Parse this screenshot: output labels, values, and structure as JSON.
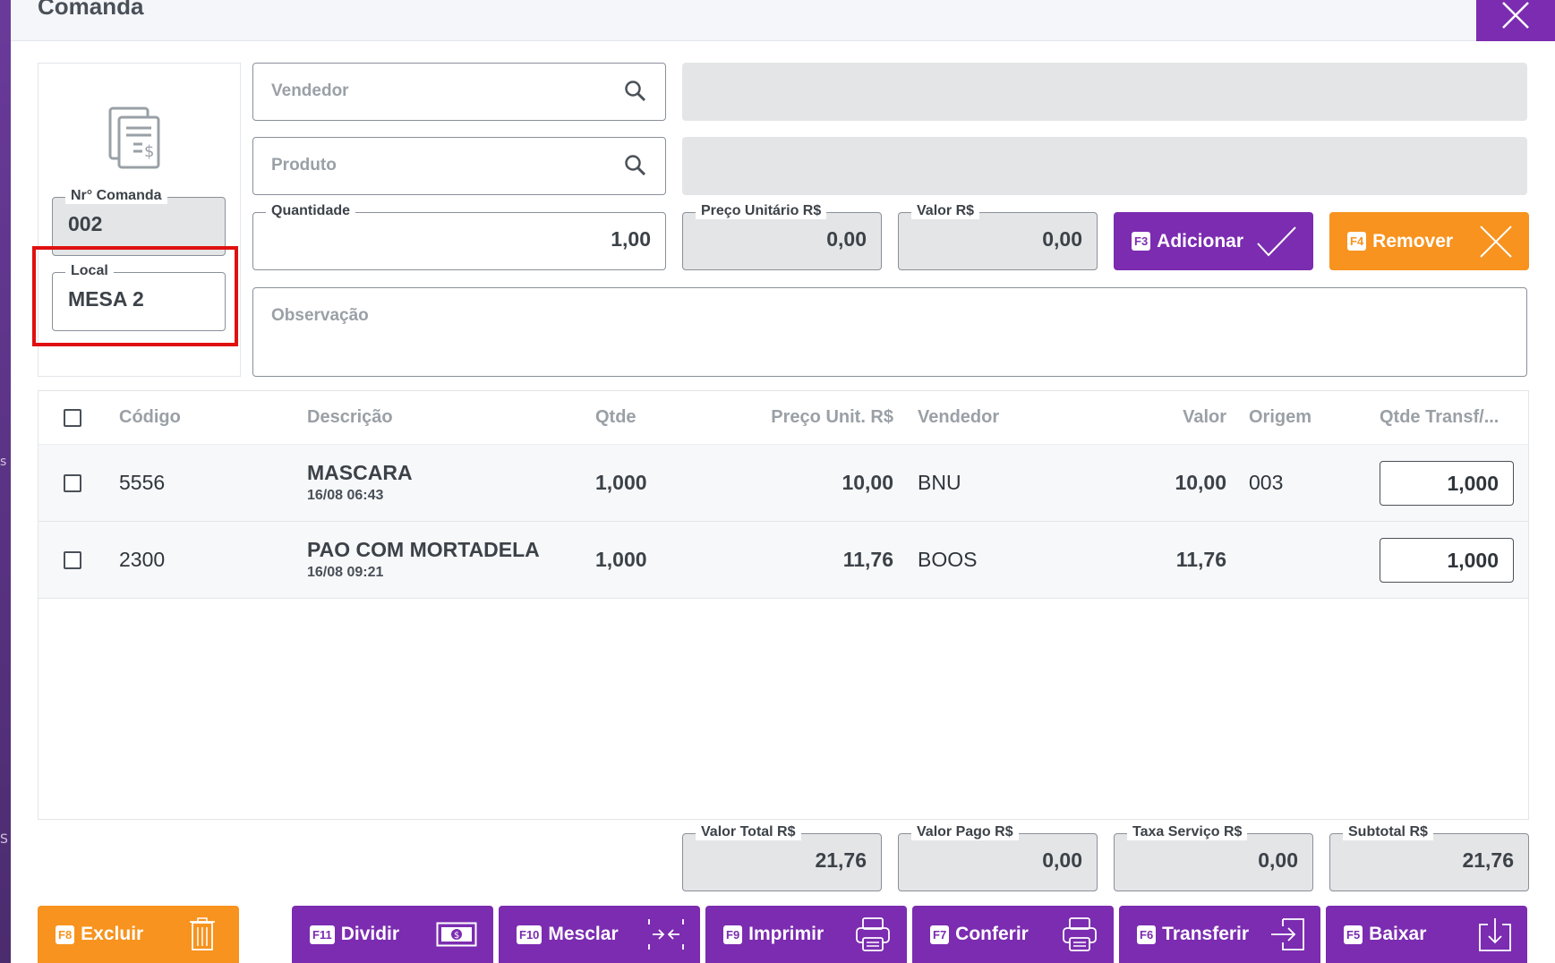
{
  "modal": {
    "title": "Comanda"
  },
  "left_panel": {
    "nr_comanda": {
      "label": "Nr° Comanda",
      "value": "002"
    },
    "local": {
      "label": "Local",
      "value": "MESA 2"
    }
  },
  "form": {
    "vendedor": {
      "placeholder": "Vendedor"
    },
    "produto": {
      "placeholder": "Produto"
    },
    "quantidade": {
      "label": "Quantidade",
      "value": "1,00"
    },
    "preco_unitario": {
      "label": "Preço Unitário R$",
      "value": "0,00"
    },
    "valor": {
      "label": "Valor R$",
      "value": "0,00"
    },
    "observacao": {
      "placeholder": "Observação"
    }
  },
  "actions": {
    "adicionar": {
      "key": "F3",
      "label": "Adicionar"
    },
    "remover": {
      "key": "F4",
      "label": "Remover"
    }
  },
  "table": {
    "columns": [
      "Código",
      "Descrição",
      "Qtde",
      "Preço Unit. R$",
      "Vendedor",
      "Valor",
      "Origem",
      "Qtde Transf/..."
    ],
    "rows": [
      {
        "codigo": "5556",
        "descricao": "MASCARA",
        "data": "16/08 06:43",
        "qtde": "1,000",
        "preco": "10,00",
        "vendedor": "BNU",
        "valor": "10,00",
        "origem": "003",
        "qtde_transf": "1,000"
      },
      {
        "codigo": "2300",
        "descricao": "PAO COM MORTADELA",
        "data": "16/08 09:21",
        "qtde": "1,000",
        "preco": "11,76",
        "vendedor": "BOOS",
        "valor": "11,76",
        "origem": "",
        "qtde_transf": "1,000"
      }
    ]
  },
  "totals": {
    "valor_total": {
      "label": "Valor Total R$",
      "value": "21,76"
    },
    "valor_pago": {
      "label": "Valor Pago R$",
      "value": "0,00"
    },
    "taxa_servico": {
      "label": "Taxa Serviço R$",
      "value": "0,00"
    },
    "subtotal": {
      "label": "Subtotal R$",
      "value": "21,76"
    }
  },
  "footer_buttons": {
    "excluir": {
      "key": "F8",
      "label": "Excluir"
    },
    "dividir": {
      "key": "F11",
      "label": "Dividir"
    },
    "mesclar": {
      "key": "F10",
      "label": "Mesclar"
    },
    "imprimir": {
      "key": "F9",
      "label": "Imprimir"
    },
    "conferir": {
      "key": "F7",
      "label": "Conferir"
    },
    "transferir": {
      "key": "F6",
      "label": "Transferir"
    },
    "baixar": {
      "key": "F5",
      "label": "Baixar"
    }
  },
  "colors": {
    "purple": "#7b2cb0",
    "orange": "#f7931e",
    "highlight": "#e01010"
  }
}
